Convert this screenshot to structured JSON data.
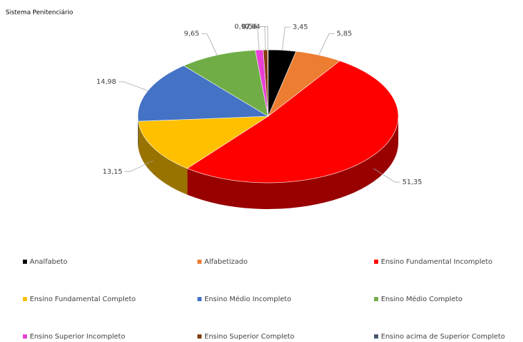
{
  "chart_data": {
    "type": "pie3d",
    "title": "Sistema Penitenciário",
    "categories": [
      "Analfabeto",
      "Alfabetizado",
      "Ensino Fundamental Incompleto",
      "Ensino Fundamental Completo",
      "Ensino Médio Incompleto",
      "Ensino Médio Completo",
      "Ensino Superior Incompleto",
      "Ensino Superior Completo",
      "Ensino acima de Superior Completo"
    ],
    "values": [
      3.45,
      5.85,
      51.35,
      13.15,
      14.98,
      9.65,
      0.97,
      0.56,
      0.04
    ],
    "value_labels": [
      "3,45",
      "5,85",
      "51,35",
      "13,15",
      "14,98",
      "9,65",
      "0,97",
      "0,56",
      "0,04"
    ],
    "colors": [
      "#000000",
      "#ed7d31",
      "#ff0000",
      "#ffc000",
      "#4472c4",
      "#70ad47",
      "#e83fd6",
      "#843c0c",
      "#44546a"
    ],
    "legend": "bottom"
  }
}
